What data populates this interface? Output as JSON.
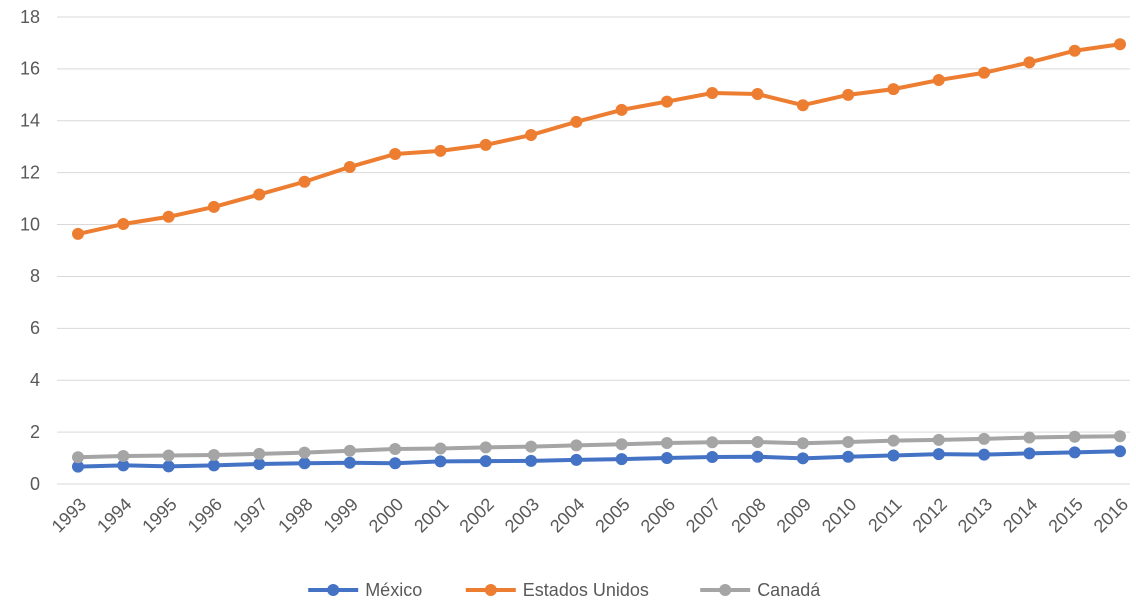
{
  "chart_data": {
    "type": "line",
    "categories": [
      "1993",
      "1994",
      "1995",
      "1996",
      "1997",
      "1998",
      "1999",
      "2000",
      "2001",
      "2002",
      "2003",
      "2004",
      "2005",
      "2006",
      "2007",
      "2008",
      "2009",
      "2010",
      "2011",
      "2012",
      "2013",
      "2014",
      "2015",
      "2016"
    ],
    "series": [
      {
        "name": "México",
        "color": "#4472c4",
        "values": [
          0.67,
          0.72,
          0.68,
          0.72,
          0.77,
          0.8,
          0.82,
          0.8,
          0.87,
          0.88,
          0.89,
          0.93,
          0.96,
          1.0,
          1.04,
          1.05,
          0.99,
          1.05,
          1.1,
          1.15,
          1.13,
          1.18,
          1.22,
          1.26
        ]
      },
      {
        "name": "Estados Unidos",
        "color": "#ed7d31",
        "values": [
          9.64,
          10.02,
          10.3,
          10.68,
          11.16,
          11.65,
          12.22,
          12.72,
          12.84,
          13.07,
          13.45,
          13.96,
          14.42,
          14.74,
          15.07,
          15.03,
          14.6,
          15.0,
          15.22,
          15.57,
          15.85,
          16.25,
          16.7,
          16.95
        ]
      },
      {
        "name": "Canadá",
        "color": "#a5a5a5",
        "values": [
          1.03,
          1.08,
          1.1,
          1.12,
          1.16,
          1.21,
          1.28,
          1.35,
          1.37,
          1.41,
          1.44,
          1.49,
          1.53,
          1.58,
          1.61,
          1.62,
          1.57,
          1.62,
          1.67,
          1.7,
          1.74,
          1.79,
          1.82,
          1.84
        ]
      }
    ],
    "ylim": [
      0,
      18
    ],
    "yticks": [
      0,
      2,
      4,
      6,
      8,
      10,
      12,
      14,
      16,
      18
    ],
    "grid": true,
    "legend": "bottom"
  }
}
